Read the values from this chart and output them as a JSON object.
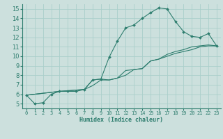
{
  "xlabel": "Humidex (Indice chaleur)",
  "ylabel": "",
  "xlim": [
    -0.5,
    23.5
  ],
  "ylim": [
    4.5,
    15.5
  ],
  "xticks": [
    0,
    1,
    2,
    3,
    4,
    5,
    6,
    7,
    8,
    9,
    10,
    11,
    12,
    13,
    14,
    15,
    16,
    17,
    18,
    19,
    20,
    21,
    22,
    23
  ],
  "yticks": [
    5,
    6,
    7,
    8,
    9,
    10,
    11,
    12,
    13,
    14,
    15
  ],
  "bg_color": "#cce0dd",
  "grid_color": "#aacfcb",
  "line_color": "#2d7d6e",
  "line1_x": [
    0,
    1,
    2,
    3,
    4,
    5,
    6,
    7,
    8,
    9,
    10,
    11,
    12,
    13,
    14,
    15,
    16,
    17,
    18,
    19,
    20,
    21,
    22,
    23
  ],
  "line1_y": [
    5.9,
    5.0,
    5.1,
    6.0,
    6.3,
    6.3,
    6.3,
    6.5,
    7.5,
    7.6,
    9.9,
    11.6,
    13.0,
    13.3,
    14.0,
    14.6,
    15.1,
    15.0,
    13.7,
    12.6,
    12.1,
    12.0,
    12.4,
    11.1
  ],
  "line2_x": [
    0,
    4,
    7,
    8,
    9,
    10,
    11,
    12,
    13,
    14,
    15,
    16,
    17,
    18,
    19,
    20,
    21,
    22,
    23
  ],
  "line2_y": [
    5.9,
    6.3,
    6.5,
    7.5,
    7.6,
    7.5,
    7.7,
    8.5,
    8.6,
    8.7,
    9.5,
    9.7,
    10.2,
    10.5,
    10.7,
    11.0,
    11.1,
    11.2,
    11.1
  ],
  "line3_x": [
    0,
    4,
    7,
    8,
    9,
    10,
    11,
    12,
    13,
    14,
    15,
    16,
    17,
    18,
    19,
    20,
    21,
    22,
    23
  ],
  "line3_y": [
    5.9,
    6.3,
    6.5,
    6.9,
    7.5,
    7.5,
    7.7,
    8.0,
    8.6,
    8.7,
    9.5,
    9.7,
    10.0,
    10.3,
    10.5,
    10.7,
    11.0,
    11.1,
    11.1
  ],
  "xlabel_fontsize": 6,
  "tick_fontsize_x": 5,
  "tick_fontsize_y": 6
}
